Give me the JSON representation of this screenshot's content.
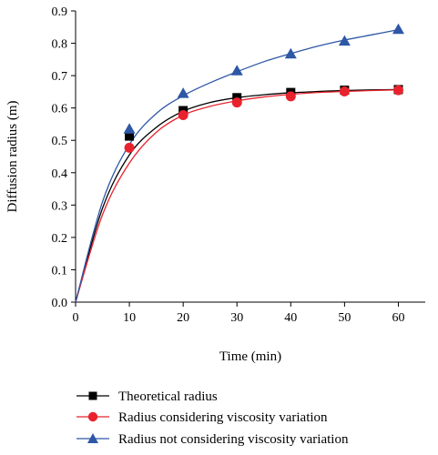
{
  "chart_data": {
    "type": "line",
    "xlabel": "Time (min)",
    "ylabel": "Diffusion radius (m)",
    "xlim": [
      0,
      65
    ],
    "ylim": [
      0,
      0.9
    ],
    "xticks": [
      0,
      10,
      20,
      30,
      40,
      50,
      60
    ],
    "yticks": [
      0.0,
      0.1,
      0.2,
      0.3,
      0.4,
      0.5,
      0.6,
      0.7,
      0.8,
      0.9
    ],
    "xtick_labels": [
      "0",
      "10",
      "20",
      "30",
      "40",
      "50",
      "60"
    ],
    "ytick_labels": [
      "0.0",
      "0.1",
      "0.2",
      "0.3",
      "0.4",
      "0.5",
      "0.6",
      "0.7",
      "0.8",
      "0.9"
    ],
    "grid": false,
    "legend_position": "bottom",
    "series": [
      {
        "name": "Theoretical radius",
        "color": "#000000",
        "marker": "square",
        "points": {
          "x": [
            10,
            20,
            30,
            40,
            50,
            60
          ],
          "y": [
            0.513,
            0.592,
            0.632,
            0.648,
            0.655,
            0.657
          ]
        },
        "curve": {
          "x": [
            0,
            5,
            10,
            15,
            20,
            25,
            30,
            35,
            40,
            45,
            50,
            55,
            60
          ],
          "y": [
            0,
            0.29,
            0.455,
            0.54,
            0.59,
            0.617,
            0.632,
            0.641,
            0.647,
            0.651,
            0.654,
            0.656,
            0.657
          ]
        }
      },
      {
        "name": "Radius considering viscosity variation",
        "color": "#e8232d",
        "marker": "circle",
        "points": {
          "x": [
            10,
            20,
            30,
            40,
            50,
            60
          ],
          "y": [
            0.477,
            0.578,
            0.617,
            0.636,
            0.651,
            0.655
          ]
        },
        "curve": {
          "x": [
            0,
            5,
            10,
            15,
            20,
            25,
            30,
            35,
            40,
            45,
            50,
            55,
            60
          ],
          "y": [
            0,
            0.27,
            0.43,
            0.525,
            0.578,
            0.605,
            0.622,
            0.634,
            0.642,
            0.648,
            0.651,
            0.654,
            0.656
          ]
        }
      },
      {
        "name": "Radius not considering viscosity variation",
        "color": "#2e57a6",
        "marker": "triangle",
        "points": {
          "x": [
            10,
            20,
            30,
            40,
            50,
            60
          ],
          "y": [
            0.535,
            0.645,
            0.715,
            0.767,
            0.807,
            0.843
          ]
        },
        "curve": {
          "x": [
            0,
            5,
            10,
            15,
            20,
            25,
            30,
            35,
            40,
            45,
            50,
            55,
            60
          ],
          "y": [
            0,
            0.31,
            0.487,
            0.583,
            0.638,
            0.678,
            0.712,
            0.743,
            0.768,
            0.791,
            0.81,
            0.826,
            0.842
          ]
        }
      }
    ]
  }
}
